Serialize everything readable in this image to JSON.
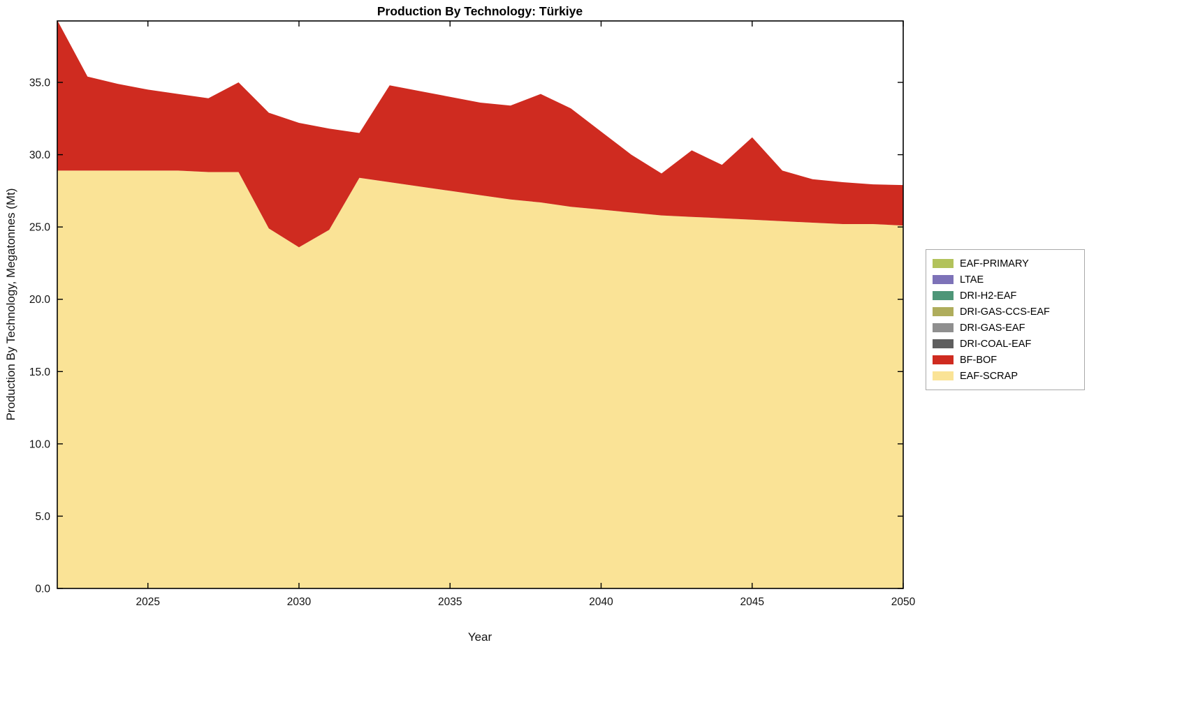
{
  "title": "Production By Technology: Türkiye",
  "xlabel": "Year",
  "ylabel": "Production By Technology, Megatonnes (Mt)",
  "chart_data": {
    "type": "area",
    "stacked": true,
    "x": [
      2022,
      2023,
      2024,
      2025,
      2026,
      2027,
      2028,
      2029,
      2030,
      2031,
      2032,
      2033,
      2034,
      2035,
      2036,
      2037,
      2038,
      2039,
      2040,
      2041,
      2042,
      2043,
      2044,
      2045,
      2046,
      2047,
      2048,
      2049,
      2050
    ],
    "series": [
      {
        "name": "EAF-SCRAP",
        "color": "#FAE396",
        "values": [
          28.9,
          28.9,
          28.9,
          28.9,
          28.9,
          28.8,
          28.8,
          24.9,
          23.6,
          24.8,
          28.4,
          28.1,
          27.8,
          27.5,
          27.2,
          26.9,
          26.7,
          26.4,
          26.2,
          26.0,
          25.8,
          25.7,
          25.6,
          25.5,
          25.4,
          25.3,
          25.2,
          25.2,
          25.1
        ]
      },
      {
        "name": "BF-BOF",
        "color": "#CF2B20",
        "values": [
          10.4,
          6.5,
          6.0,
          5.6,
          5.3,
          5.1,
          6.2,
          8.0,
          8.6,
          7.0,
          3.1,
          6.7,
          6.6,
          6.5,
          6.4,
          6.5,
          7.5,
          6.8,
          5.4,
          4.0,
          2.9,
          4.6,
          3.7,
          5.7,
          3.5,
          3.0,
          2.9,
          2.75,
          2.8
        ]
      }
    ],
    "xlim": [
      2022,
      2050
    ],
    "ylim": [
      0,
      39.25
    ],
    "xticks": [
      2025,
      2030,
      2035,
      2040,
      2045,
      2050
    ],
    "yticks": [
      0,
      5,
      10,
      15,
      20,
      25,
      30,
      35
    ],
    "ytick_format": "one-decimal",
    "grid": false,
    "legend_position": "right-outside"
  },
  "legend": {
    "items": [
      {
        "label": "EAF-PRIMARY",
        "color": "#B2C25B"
      },
      {
        "label": "LTAE",
        "color": "#7D72B8"
      },
      {
        "label": "DRI-H2-EAF",
        "color": "#4E9678"
      },
      {
        "label": "DRI-GAS-CCS-EAF",
        "color": "#AFAD5C"
      },
      {
        "label": "DRI-GAS-EAF",
        "color": "#8F8F8F"
      },
      {
        "label": "DRI-COAL-EAF",
        "color": "#5E5E5E"
      },
      {
        "label": "BF-BOF",
        "color": "#CF2B20"
      },
      {
        "label": "EAF-SCRAP",
        "color": "#FAE396"
      }
    ]
  }
}
